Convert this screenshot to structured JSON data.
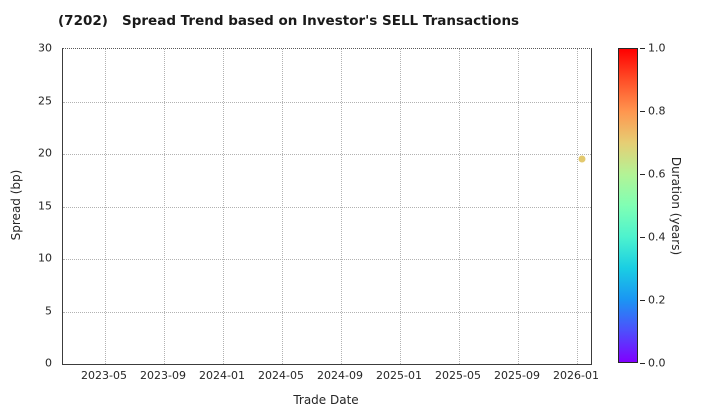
{
  "title": "(7202)   Spread Trend based on Investor's SELL Transactions",
  "chart_data": {
    "type": "scatter",
    "title": "(7202)   Spread Trend based on Investor's SELL Transactions",
    "xlabel": "Trade Date",
    "ylabel": "Spread (bp)",
    "grid": "dotted",
    "ylim": [
      0,
      30
    ],
    "y_ticks": [
      0,
      5,
      10,
      15,
      20,
      25,
      30
    ],
    "x_tick_labels": [
      "2023-05",
      "2023-09",
      "2024-01",
      "2024-05",
      "2024-09",
      "2025-01",
      "2025-05",
      "2025-09",
      "2026-01"
    ],
    "points": [
      {
        "date_approx": "2026-01",
        "x_frac": 0.983,
        "spread_bp": 19.5,
        "duration_years": 0.7,
        "color": "#e3c96e"
      }
    ],
    "colorbar": {
      "label": "Duration (years)",
      "min": 0.0,
      "max": 1.0,
      "tick_labels": [
        "0.0",
        "0.2",
        "0.4",
        "0.6",
        "0.8",
        "1.0"
      ],
      "colormap_name": "rainbow",
      "stops": [
        {
          "pos": 0.0,
          "color": "#8000ff"
        },
        {
          "pos": 0.1,
          "color": "#4d4ffc"
        },
        {
          "pos": 0.2,
          "color": "#1a96f3"
        },
        {
          "pos": 0.3,
          "color": "#1acee3"
        },
        {
          "pos": 0.4,
          "color": "#4df3ce"
        },
        {
          "pos": 0.5,
          "color": "#80ffb4"
        },
        {
          "pos": 0.6,
          "color": "#b3f396"
        },
        {
          "pos": 0.7,
          "color": "#e6ce74"
        },
        {
          "pos": 0.8,
          "color": "#ff964f"
        },
        {
          "pos": 0.9,
          "color": "#ff4f28"
        },
        {
          "pos": 1.0,
          "color": "#ff0000"
        }
      ]
    }
  }
}
